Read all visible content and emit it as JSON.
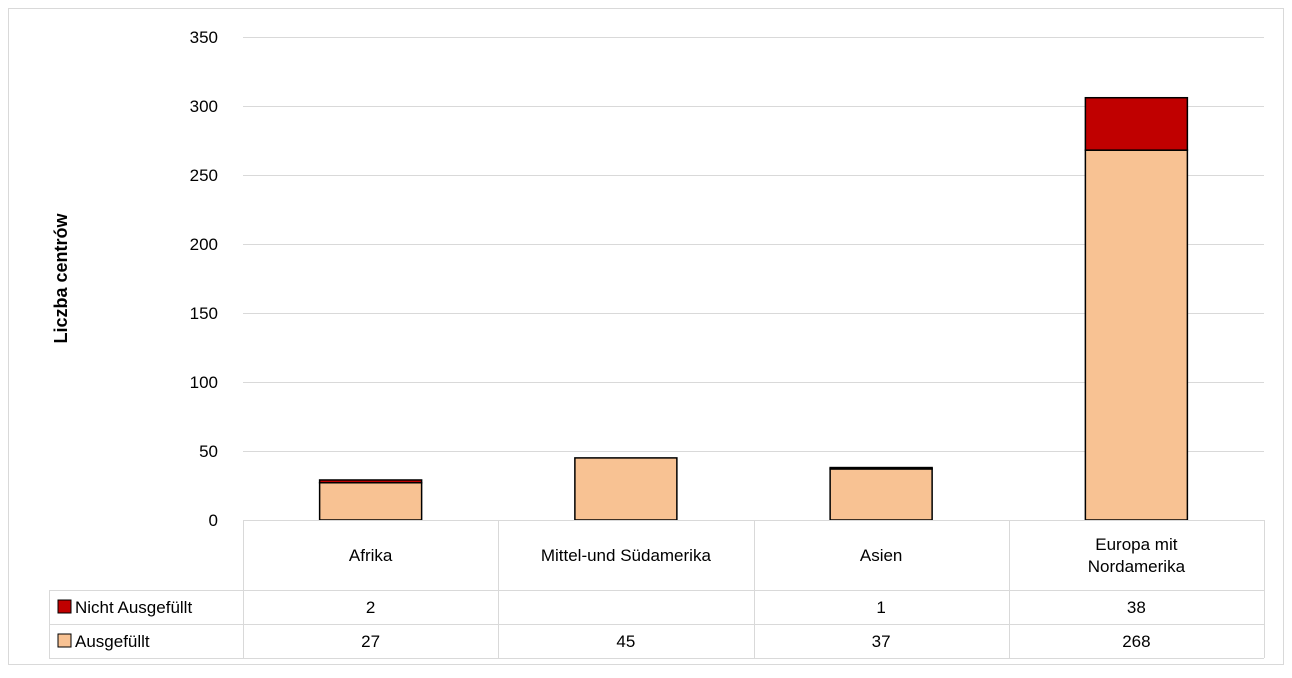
{
  "chart_data": {
    "type": "bar",
    "stacked": true,
    "title": "",
    "xlabel": "",
    "ylabel": "Liczba centrów",
    "ylim": [
      0,
      350
    ],
    "yticks": [
      0,
      50,
      100,
      150,
      200,
      250,
      300,
      350
    ],
    "grid": true,
    "legend_placement": "data-table-left",
    "categories": [
      [
        "Afrika"
      ],
      [
        "Mittel-und Südamerika"
      ],
      [
        "Asien"
      ],
      [
        "Europa mit",
        "Nordamerika"
      ]
    ],
    "series": [
      {
        "name": "Ausgefüllt",
        "color": "#F8C293",
        "values": [
          27,
          45,
          37,
          268
        ],
        "table_values": [
          "27",
          "45",
          "37",
          "268"
        ]
      },
      {
        "name": "Nicht Ausgefüllt",
        "color": "#C00000",
        "values": [
          2,
          0,
          1,
          38
        ],
        "table_values": [
          "2",
          "",
          "1",
          "38"
        ]
      }
    ]
  }
}
